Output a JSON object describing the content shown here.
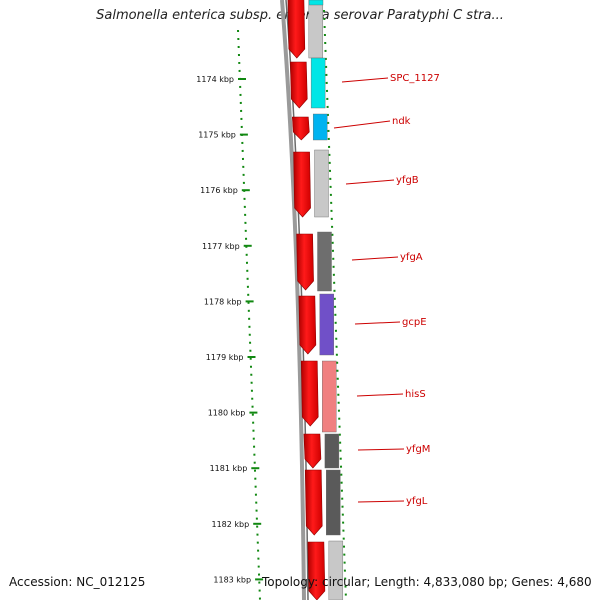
{
  "title": "Salmonella enterica subsp. enterica serovar Paratyphi C stra...",
  "footer": {
    "accession": "Accession: NC_012125",
    "topology": "Topology: circular; Length: 4,833,080 bp; Genes: 4,680"
  },
  "scale": {
    "ticks": [
      "1174 kbp",
      "1175 kbp",
      "1176 kbp",
      "1177 kbp",
      "1178 kbp",
      "1179 kbp",
      "1180 kbp",
      "1181 kbp",
      "1182 kbp",
      "1183 kbp"
    ]
  },
  "genes": [
    {
      "name": "SPC_1127"
    },
    {
      "name": "ndk"
    },
    {
      "name": "yfgB"
    },
    {
      "name": "yfgA"
    },
    {
      "name": "gcpE"
    },
    {
      "name": "hisS"
    },
    {
      "name": "yfgM"
    },
    {
      "name": "yfgL"
    }
  ],
  "colors": {
    "cds": "#ff0000",
    "label": "#cc0000",
    "scale_dots": "#118811",
    "gene_track": [
      "#00e6e6",
      "#00b3f0",
      "#c8c8c8",
      "#6e6e6e",
      "#7050c8",
      "#f08080",
      "#5a5a5a",
      "#5a5a5a"
    ]
  }
}
